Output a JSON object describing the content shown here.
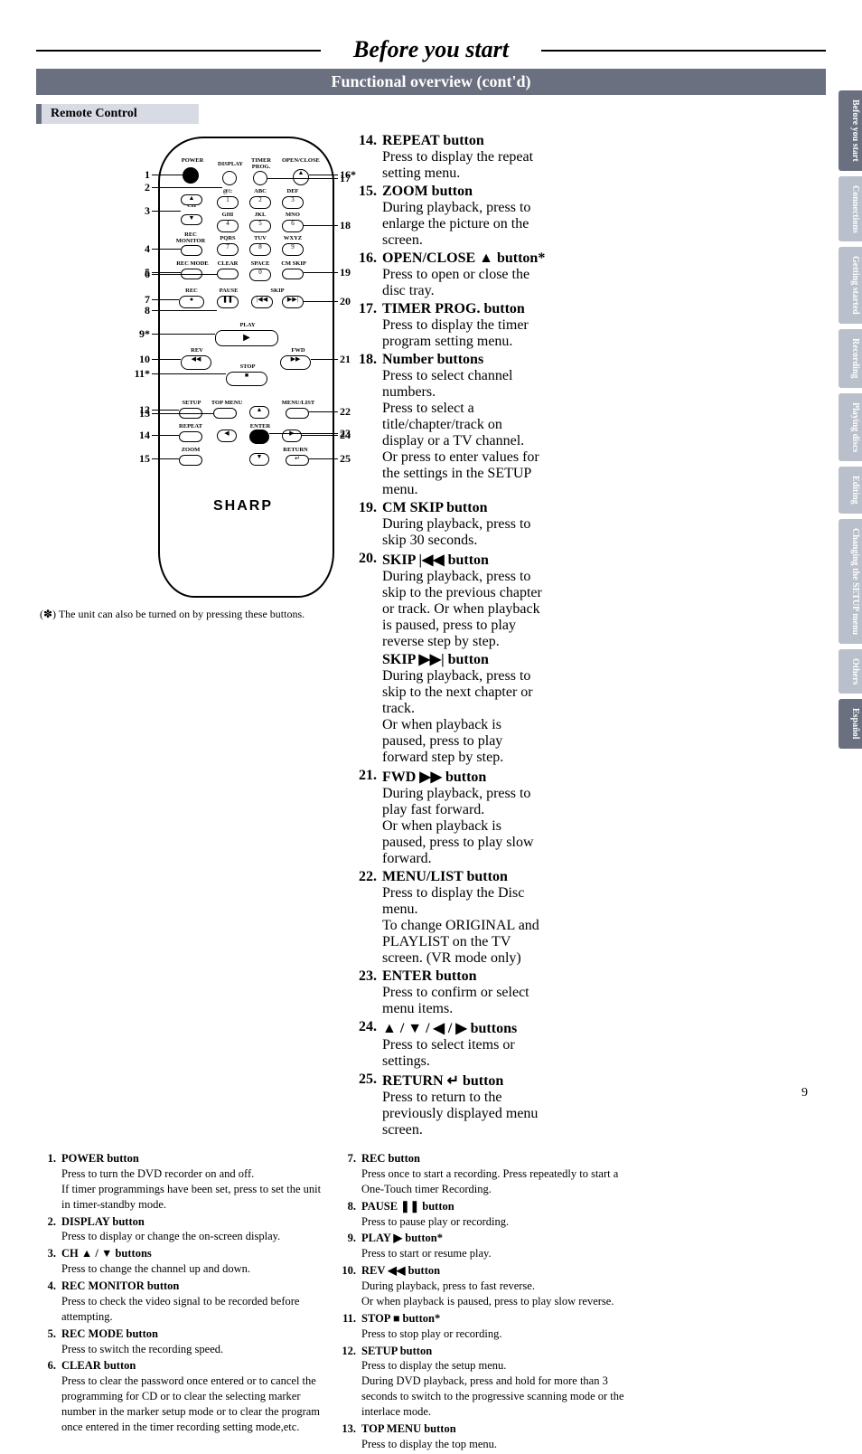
{
  "page": {
    "title": "Before you start",
    "subtitle": "Functional overview (cont'd)",
    "section_label": "Remote Control",
    "page_number": "9"
  },
  "side_tabs": [
    {
      "label": "Before you start",
      "active": true
    },
    {
      "label": "Connections",
      "active": false
    },
    {
      "label": "Getting started",
      "active": false
    },
    {
      "label": "Recording",
      "active": false
    },
    {
      "label": "Playing discs",
      "active": false
    },
    {
      "label": "Editing",
      "active": false
    },
    {
      "label": "Changing the SETUP menu",
      "active": false
    },
    {
      "label": "Others",
      "active": false
    },
    {
      "label": "Español",
      "active": true
    }
  ],
  "remote": {
    "brand": "SHARP",
    "left_callouts": [
      "1",
      "2",
      "3",
      "4",
      "5",
      "6",
      "7",
      "8",
      "9*",
      "10",
      "11*",
      "12",
      "13",
      "14",
      "15"
    ],
    "right_callouts": [
      "16*",
      "17",
      "18",
      "19",
      "20",
      "21",
      "22",
      "23",
      "24",
      "25"
    ],
    "button_labels": {
      "power": "POWER",
      "display": "DISPLAY",
      "timer": "TIMER\nPROG.",
      "open": "OPEN/CLOSE",
      "ch": "CH",
      "recmon": "REC\nMONITOR",
      "recmode": "REC MODE",
      "clear": "CLEAR",
      "space": "SPACE",
      "cmskip": "CM SKIP",
      "rec": "REC",
      "pause": "PAUSE",
      "skip": "SKIP",
      "play": "PLAY",
      "rev": "REV",
      "fwd": "FWD",
      "stop": "STOP",
      "setup": "SETUP",
      "topmenu": "TOP MENU",
      "menulist": "MENU/LIST",
      "enter": "ENTER",
      "repeat": "REPEAT",
      "zoom": "ZOOM",
      "return": "RETURN",
      "abc": "ABC",
      "def": "DEF",
      "ghi": "GHI",
      "jkl": "JKL",
      "mno": "MNO",
      "pqrs": "PQRS",
      "tuv": "TUV",
      "wxyz": "WXYZ",
      "sym": "@!:"
    },
    "footnote": "(✽) The unit can also be turned on by pressing these buttons."
  },
  "items_col1": [
    {
      "n": "1.",
      "title": "POWER button",
      "desc": "Press to turn the DVD recorder on and off.\nIf timer programmings have been set, press to set the unit in timer-standby mode."
    },
    {
      "n": "2.",
      "title": "DISPLAY button",
      "desc": "Press to display or change the on-screen display."
    },
    {
      "n": "3.",
      "title": "CH ▲ / ▼ buttons",
      "desc": "Press to change the channel up and down."
    },
    {
      "n": "4.",
      "title": "REC MONITOR button",
      "desc": "Press to check the video signal to be recorded before attempting."
    },
    {
      "n": "5.",
      "title": "REC MODE button",
      "desc": "Press to switch the recording speed."
    },
    {
      "n": "6.",
      "title": "CLEAR button",
      "desc": "Press to clear the password once entered or to cancel the programming for CD or to clear the selecting marker number in the marker setup mode or to clear the program once entered in the timer recording setting mode,etc."
    }
  ],
  "items_col2": [
    {
      "n": "7.",
      "title": "REC button",
      "desc": "Press once to start a recording. Press repeatedly to start a One-Touch timer Recording."
    },
    {
      "n": "8.",
      "title": "PAUSE ❚❚ button",
      "desc": "Press to pause play or recording."
    },
    {
      "n": "9.",
      "title": "PLAY ▶ button*",
      "desc": "Press to start or resume play."
    },
    {
      "n": "10.",
      "title": "REV ◀◀ button",
      "desc": "During playback, press to fast reverse.\nOr when playback is paused, press to play slow reverse."
    },
    {
      "n": "11.",
      "title": "STOP ■ button*",
      "desc": "Press to stop play or recording."
    },
    {
      "n": "12.",
      "title": "SETUP button",
      "desc": "Press to display the setup menu.\nDuring DVD playback, press and hold for more than 3 seconds to switch to the progressive scanning mode or the interlace mode."
    },
    {
      "n": "13.",
      "title": "TOP MENU button",
      "desc": "Press to display the top menu."
    }
  ],
  "items_col3": [
    {
      "n": "14.",
      "title": "REPEAT button",
      "desc": "Press to display the repeat setting menu."
    },
    {
      "n": "15.",
      "title": "ZOOM button",
      "desc": "During playback, press to enlarge the picture on the screen."
    },
    {
      "n": "16.",
      "title": "OPEN/CLOSE ▲ button*",
      "desc": "Press to open or close the disc tray."
    },
    {
      "n": "17.",
      "title": "TIMER PROG. button",
      "desc": "Press to display the timer program setting menu."
    },
    {
      "n": "18.",
      "title": "Number buttons",
      "desc": "Press to select channel numbers.\nPress to select a title/chapter/track on display or a TV channel.\nOr press to enter values for the settings in the SETUP menu."
    },
    {
      "n": "19.",
      "title": "CM SKIP button",
      "desc": "During playback, press to skip 30 seconds."
    },
    {
      "n": "20.",
      "title": "SKIP |◀◀ button",
      "desc": "During playback, press to skip to the previous chapter or track. Or when playback is paused, press to play reverse step by step.",
      "extra_title": "SKIP ▶▶| button",
      "extra_desc": "During playback, press to skip to the next chapter or track.\nOr when playback is paused, press to play forward step by step."
    },
    {
      "n": "21.",
      "title": "FWD ▶▶ button",
      "desc": "During playback, press to play fast forward.\nOr when playback is paused, press to play slow forward."
    },
    {
      "n": "22.",
      "title": "MENU/LIST button",
      "desc": "Press to display the Disc menu.\nTo change ORIGINAL and PLAYLIST on the TV screen. (VR mode only)"
    },
    {
      "n": "23.",
      "title": "ENTER button",
      "desc": "Press to confirm or select menu items."
    },
    {
      "n": "24.",
      "title": "▲ / ▼ / ◀ / ▶ buttons",
      "desc": "Press to select items or settings."
    },
    {
      "n": "25.",
      "title": "RETURN ↵ button",
      "desc": "Press to return to the previously displayed menu screen."
    }
  ]
}
